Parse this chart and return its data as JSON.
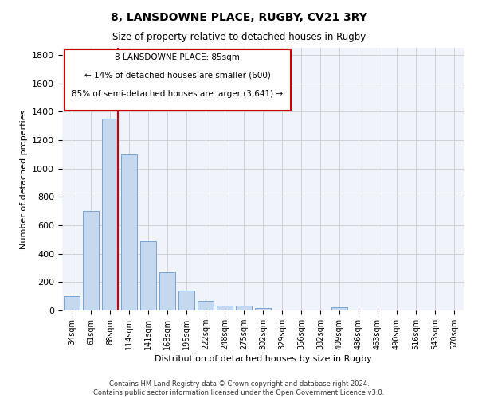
{
  "title": "8, LANSDOWNE PLACE, RUGBY, CV21 3RY",
  "subtitle": "Size of property relative to detached houses in Rugby",
  "xlabel": "Distribution of detached houses by size in Rugby",
  "ylabel": "Number of detached properties",
  "footnote": "Contains HM Land Registry data © Crown copyright and database right 2024.\nContains public sector information licensed under the Open Government Licence v3.0.",
  "bar_color": "#c5d8f0",
  "bar_edge_color": "#6699cc",
  "grid_color": "#cccccc",
  "background_color": "#f0f4fa",
  "vline_color": "#cc0000",
  "annotation_box_color": "#cc0000",
  "annotation_text_line1": "8 LANSDOWNE PLACE: 85sqm",
  "annotation_text_line2": "← 14% of detached houses are smaller (600)",
  "annotation_text_line3": "85% of semi-detached houses are larger (3,641) →",
  "categories": [
    "34sqm",
    "61sqm",
    "88sqm",
    "114sqm",
    "141sqm",
    "168sqm",
    "195sqm",
    "222sqm",
    "248sqm",
    "275sqm",
    "302sqm",
    "329sqm",
    "356sqm",
    "382sqm",
    "409sqm",
    "436sqm",
    "463sqm",
    "490sqm",
    "516sqm",
    "543sqm",
    "570sqm"
  ],
  "values": [
    100,
    700,
    1350,
    1100,
    490,
    270,
    140,
    70,
    35,
    35,
    15,
    0,
    0,
    0,
    20,
    0,
    0,
    0,
    0,
    0,
    0
  ],
  "ylim": [
    0,
    1850
  ],
  "yticks": [
    0,
    200,
    400,
    600,
    800,
    1000,
    1200,
    1400,
    1600,
    1800
  ],
  "vline_bin_index": 2
}
